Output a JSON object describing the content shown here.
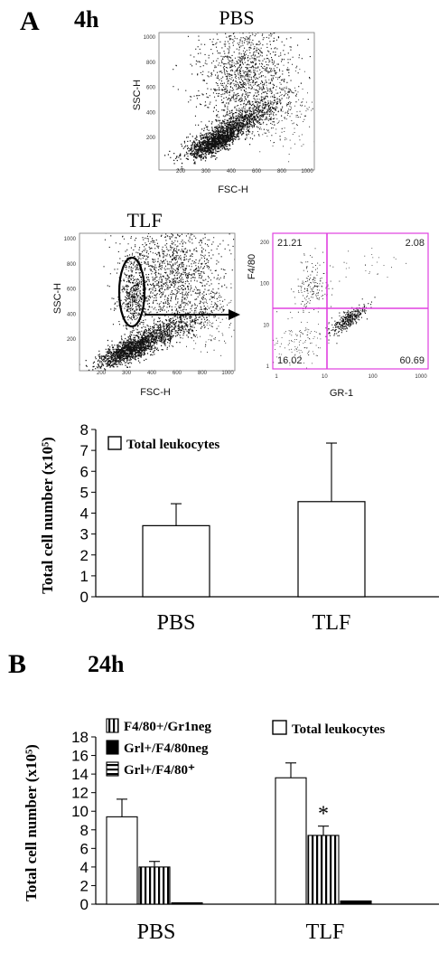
{
  "panel_a": {
    "letter": "A",
    "time": "4h",
    "facs_pbs": {
      "title": "PBS",
      "xlabel": "FSC-H",
      "ylabel": "SSC-H",
      "xticks": [
        "200",
        "300",
        "400",
        "600",
        "800",
        "1000"
      ],
      "yticks": [
        "200",
        "400",
        "600",
        "800",
        "1000"
      ]
    },
    "facs_tlf": {
      "title": "TLF",
      "xlabel": "FSC-H",
      "ylabel": "SSC-H",
      "xticks": [
        "200",
        "300",
        "400",
        "600",
        "800",
        "1000"
      ],
      "yticks": [
        "200",
        "400",
        "600",
        "800",
        "1000"
      ]
    },
    "facs_gated": {
      "xlabel": "GR-1",
      "ylabel": "F4/80",
      "xticks": [
        "1",
        "10",
        "100",
        "1000"
      ],
      "yticks": [
        "1",
        "10",
        "100",
        "200"
      ],
      "quadrants": {
        "upper_left": "21.21",
        "upper_right": "2.08",
        "lower_left": "16.02",
        "lower_right": "60.69"
      },
      "gate_color": "#e040e0"
    }
  },
  "panel_b": {
    "letter": "B",
    "time": "24h"
  },
  "chart_data": [
    {
      "type": "bar",
      "categories": [
        "PBS",
        "TLF"
      ],
      "series": [
        {
          "name": "Total leukocytes",
          "values": [
            3.4,
            4.55
          ],
          "errors": [
            1.05,
            2.8
          ]
        }
      ],
      "ylabel": "Total cell number (x10⁵)",
      "ylim": [
        0,
        8
      ],
      "yticks": [
        0,
        1,
        2,
        3,
        4,
        5,
        6,
        7,
        8
      ],
      "legend_position": "top-left",
      "grid": false
    },
    {
      "type": "bar",
      "categories": [
        "PBS",
        "TLF"
      ],
      "series": [
        {
          "name": "Total leukocytes",
          "values": [
            9.4,
            13.6
          ],
          "errors": [
            1.9,
            1.6
          ],
          "pattern": "white"
        },
        {
          "name": "F4/80+/Gr1neg",
          "values": [
            4.0,
            7.4
          ],
          "errors": [
            0.6,
            1.0
          ],
          "pattern": "vertical-stripes"
        },
        {
          "name": "Grl+/F4/80neg",
          "values": [
            0.15,
            0.35
          ],
          "errors": [
            0,
            0
          ],
          "pattern": "black"
        }
      ],
      "legend": [
        {
          "name": "F4/80+/Gr1neg",
          "pattern": "vertical-stripes"
        },
        {
          "name": "Grl+/F4/80neg",
          "pattern": "black"
        },
        {
          "name": "Grl+/F4/80⁺",
          "pattern": "horizontal-stripes"
        },
        {
          "name": "Total leukocytes",
          "pattern": "white"
        }
      ],
      "annotations": [
        {
          "text": "*",
          "category": "TLF",
          "series": "F4/80+/Gr1neg"
        }
      ],
      "ylabel": "Total cell number (x10⁵)",
      "ylim": [
        0,
        18
      ],
      "yticks": [
        0,
        2,
        4,
        6,
        8,
        10,
        12,
        14,
        16,
        18
      ],
      "legend_position": "top",
      "grid": false
    }
  ]
}
